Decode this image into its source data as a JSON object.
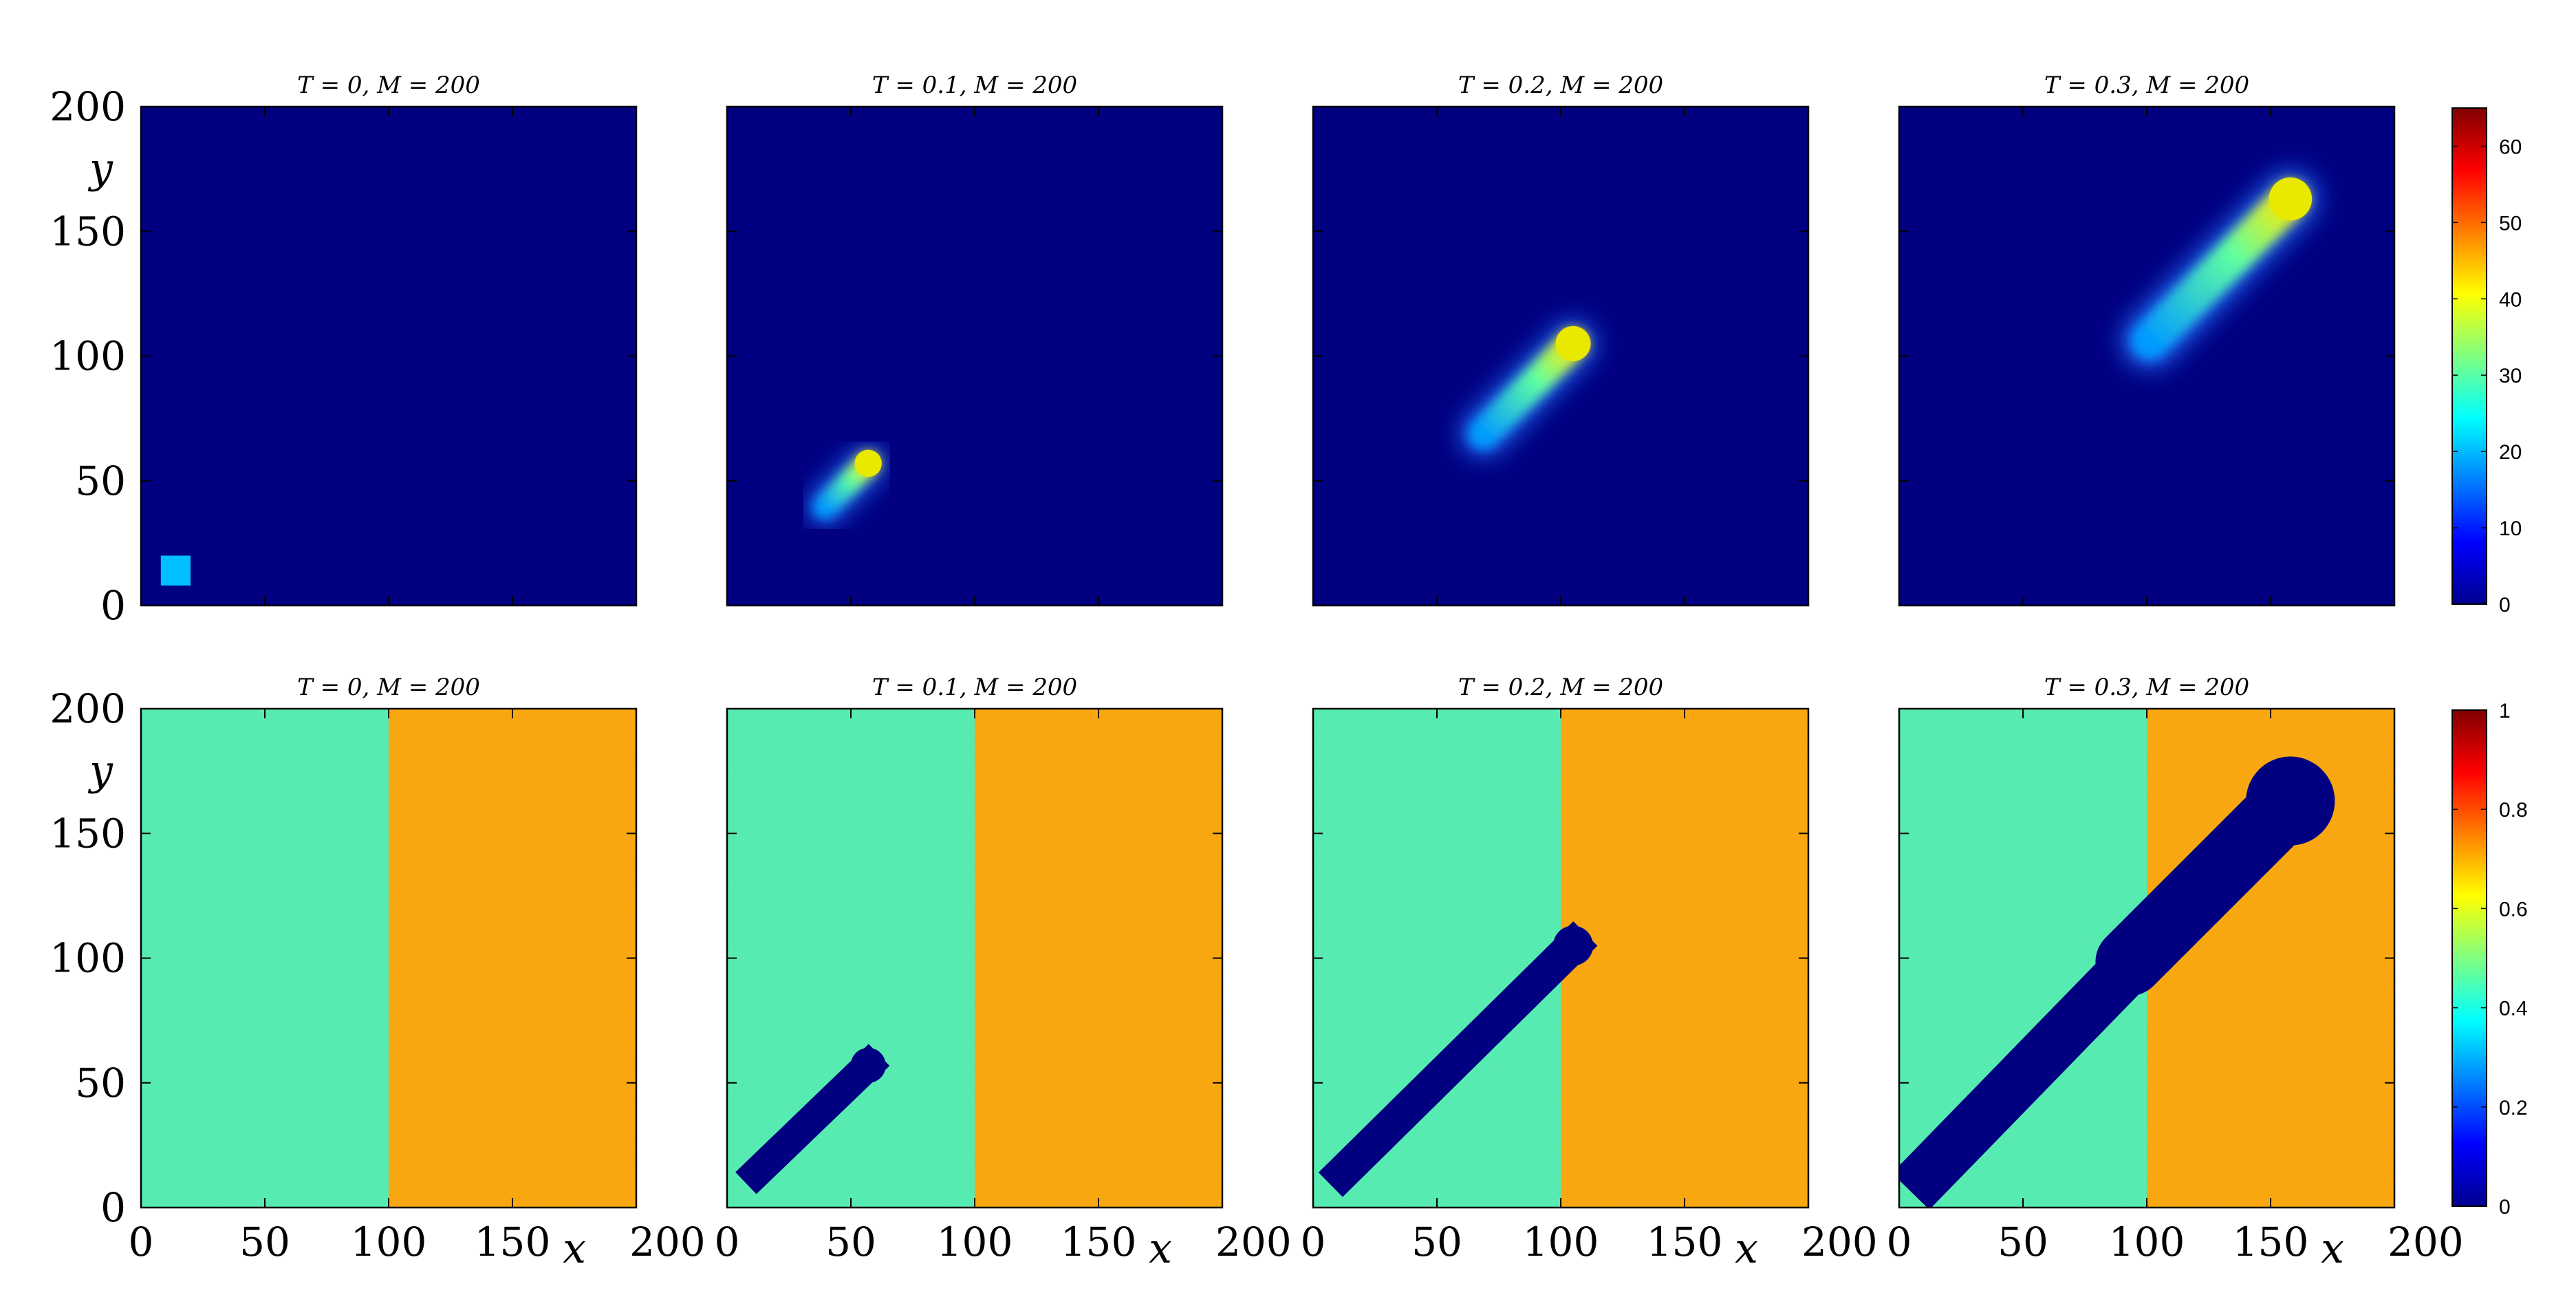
{
  "chart_data": {
    "type": "heatmap",
    "panels": [
      {
        "title": "T = 0, M = 200"
      },
      {
        "title": "T = 0.1, M = 200"
      },
      {
        "title": "T = 0.2, M = 200"
      },
      {
        "title": "T = 0.3, M = 200"
      },
      {
        "title": "T = 0, M = 200"
      },
      {
        "title": "T = 0.1, M = 200"
      },
      {
        "title": "T = 0.2, M = 200"
      },
      {
        "title": "T = 0.3, M = 200"
      }
    ],
    "xlabel": "x",
    "ylabel": "y",
    "xlim": [
      0,
      200
    ],
    "ylim": [
      0,
      200
    ],
    "x_ticks": [
      "0",
      "50",
      "100",
      "150",
      "200"
    ],
    "y_ticks": [
      "0",
      "50",
      "100",
      "150",
      "200"
    ],
    "top_row": {
      "colormap": "jet",
      "clim": [
        0,
        65
      ],
      "colorbar_ticks": [
        "0",
        "10",
        "20",
        "30",
        "40",
        "50",
        "60"
      ],
      "background_value": 0,
      "initial_patch": {
        "x": [
          8,
          20
        ],
        "y": [
          8,
          20
        ],
        "value": 23
      },
      "plume_heads": [
        {
          "T": 0.1,
          "x": 57,
          "y": 57
        },
        {
          "T": 0.2,
          "x": 105,
          "y": 105
        },
        {
          "T": 0.3,
          "x": 158,
          "y": 163
        }
      ],
      "plume_head_value": 42,
      "plume_tail_value": 18
    },
    "bottom_row": {
      "colormap": "jet",
      "clim": [
        0,
        1
      ],
      "colorbar_ticks": [
        "0",
        "0.2",
        "0.4",
        "0.6",
        "0.8",
        "1"
      ],
      "left_half_value": 0.44,
      "right_half_value": 0.67,
      "split_x": 100,
      "channel_value": 0,
      "channel_start": {
        "x": 12,
        "y": 14
      },
      "channel_ends": [
        {
          "T": 0.1,
          "x": 57,
          "y": 57
        },
        {
          "T": 0.2,
          "x": 105,
          "y": 105
        },
        {
          "T": 0.3,
          "x": 158,
          "y": 163
        }
      ]
    },
    "colors": {
      "jet_dark_blue": "#00008f",
      "cyan_patch": "#00bfff",
      "green_left": "#4df0b0",
      "orange_right": "#ffa500",
      "plume_yellow": "#e8e800"
    }
  }
}
